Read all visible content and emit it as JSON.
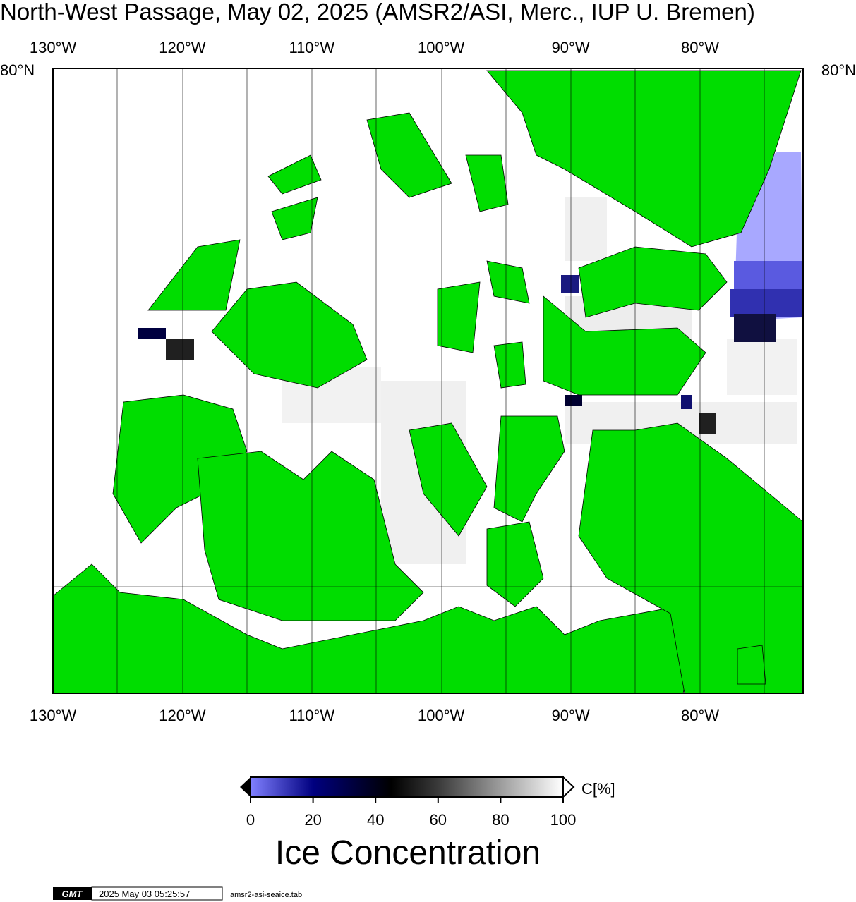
{
  "header": {
    "title": "North-West Passage, May 02, 2025 (AMSR2/ASI, Merc., IUP U. Bremen)"
  },
  "map": {
    "longitude_labels": [
      "130°W",
      "120°W",
      "110°W",
      "100°W",
      "90°W",
      "80°W"
    ],
    "latitude_labels": [
      "80°N"
    ]
  },
  "colorbar": {
    "title": "Ice Concentration",
    "unit": "C[%]",
    "range": [
      0,
      100
    ],
    "ticks": [
      0,
      20,
      40,
      60,
      80,
      100
    ]
  },
  "footer": {
    "logo": "GMT",
    "timestamp": "2025 May 03 05:25:57",
    "file": "amsr2-asi-seaice.tab"
  }
}
